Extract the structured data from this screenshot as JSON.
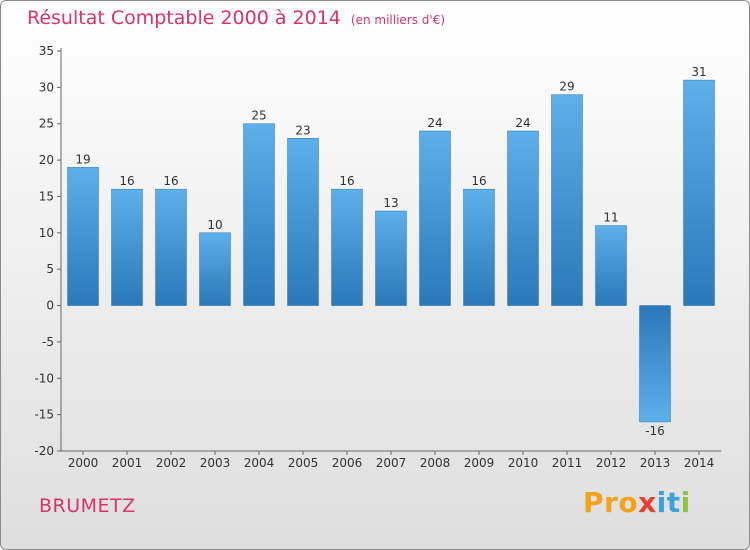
{
  "title": "Résultat Comptable 2000 à 2014",
  "unit": "(en milliers d'€)",
  "location": "BRUMETZ",
  "logo": {
    "parts": [
      "Pro",
      "x",
      "it",
      "i"
    ]
  },
  "colors": {
    "bar_top": "#5db0ea",
    "bar_bottom": "#2a78b8",
    "title": "#d8336a"
  },
  "chart_data": {
    "type": "bar",
    "title": "Résultat Comptable 2000 à 2014",
    "xlabel": "",
    "ylabel": "",
    "categories": [
      "2000",
      "2001",
      "2002",
      "2003",
      "2004",
      "2005",
      "2006",
      "2007",
      "2008",
      "2009",
      "2010",
      "2011",
      "2012",
      "2013",
      "2014"
    ],
    "values": [
      19,
      16,
      16,
      10,
      25,
      23,
      16,
      13,
      24,
      16,
      24,
      29,
      11,
      -16,
      31
    ],
    "ylim": [
      -20,
      35
    ],
    "yticks": [
      35,
      30,
      25,
      20,
      15,
      10,
      5,
      0,
      -5,
      -10,
      -15,
      -20
    ],
    "grid": false,
    "legend": "none"
  }
}
